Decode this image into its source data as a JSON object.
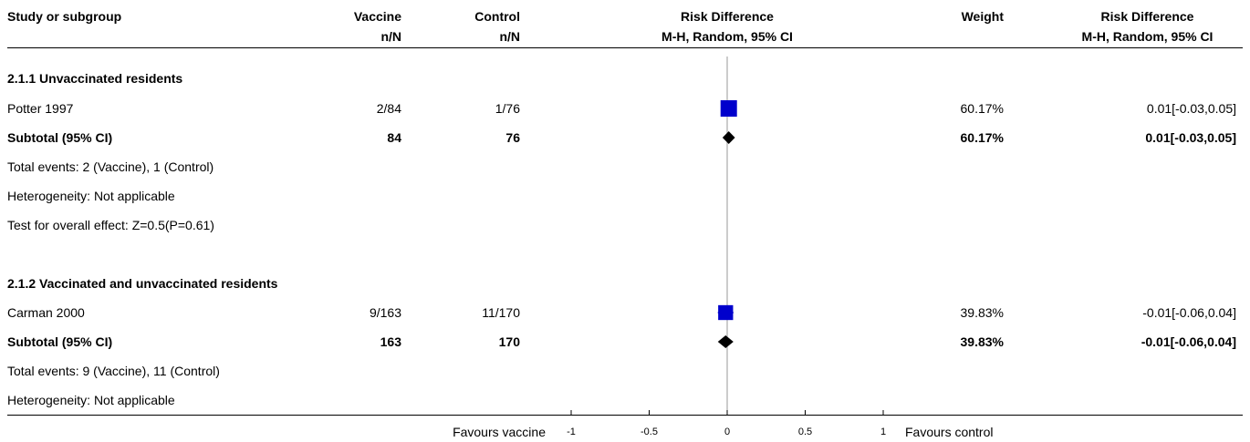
{
  "header": {
    "study_label": "Study or subgroup",
    "vaccine_label": "Vaccine",
    "vaccine_sub": "n/N",
    "control_label": "Control",
    "control_sub": "n/N",
    "rd_plot_label": "Risk Difference",
    "rd_plot_sub": "M-H, Random, 95% CI",
    "weight_label": "Weight",
    "rd_value_label": "Risk Difference",
    "rd_value_sub": "M-H, Random, 95% CI"
  },
  "groups": [
    {
      "title": "2.1.1 Unvaccinated residents",
      "study": {
        "name": "Potter 1997",
        "vaccine": "2/84",
        "control": "1/76",
        "weight": "60.17%",
        "rd": "0.01[-0.03,0.05]"
      },
      "subtotal": {
        "label": "Subtotal (95% CI)",
        "vaccine": "84",
        "control": "76",
        "weight": "60.17%",
        "rd": "0.01[-0.03,0.05]"
      },
      "total_events": "Total events: 2 (Vaccine), 1 (Control)",
      "heterogeneity": "Heterogeneity: Not applicable",
      "overall_effect": "Test for overall effect: Z=0.5(P=0.61)"
    },
    {
      "title": "2.1.2 Vaccinated and unvaccinated residents",
      "study": {
        "name": "Carman 2000",
        "vaccine": "9/163",
        "control": "11/170",
        "weight": "39.83%",
        "rd": "-0.01[-0.06,0.04]"
      },
      "subtotal": {
        "label": "Subtotal (95% CI)",
        "vaccine": "163",
        "control": "170",
        "weight": "39.83%",
        "rd": "-0.01[-0.06,0.04]"
      },
      "total_events": "Total events: 9 (Vaccine), 11 (Control)",
      "heterogeneity": "Heterogeneity: Not applicable"
    }
  ],
  "footer": {
    "favours_left": "Favours vaccine",
    "favours_right": "Favours control"
  },
  "chart_data": {
    "type": "forest",
    "xlim": [
      -1,
      1
    ],
    "ticks": [
      -1,
      -0.5,
      0,
      0.5,
      1
    ],
    "tick_labels": [
      "-1",
      "-0.5",
      "0",
      "0.5",
      "1"
    ],
    "studies": [
      {
        "name": "Potter 1997",
        "estimate": 0.01,
        "ci": [
          -0.03,
          0.05
        ],
        "weight": 60.17,
        "kind": "study"
      },
      {
        "name": "Subtotal (95% CI)",
        "estimate": 0.01,
        "ci": [
          -0.03,
          0.05
        ],
        "weight": 60.17,
        "kind": "subtotal"
      },
      {
        "name": "Carman 2000",
        "estimate": -0.01,
        "ci": [
          -0.06,
          0.04
        ],
        "weight": 39.83,
        "kind": "study"
      },
      {
        "name": "Subtotal (95% CI)",
        "estimate": -0.01,
        "ci": [
          -0.06,
          0.04
        ],
        "weight": 39.83,
        "kind": "subtotal"
      }
    ],
    "colors": {
      "study_marker": "#0000cc",
      "subtotal_marker": "#000000",
      "reference_line": "#999999"
    }
  }
}
